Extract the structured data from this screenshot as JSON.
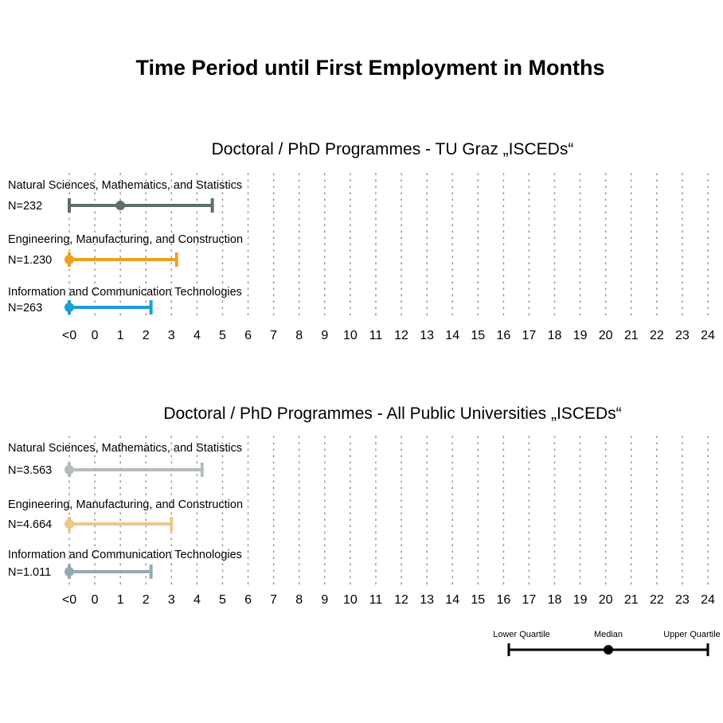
{
  "chart_data": {
    "type": "range-dot",
    "title": "Time Period until First Employment in Months",
    "x_tick_labels": [
      "<0",
      "0",
      "1",
      "2",
      "3",
      "4",
      "5",
      "6",
      "7",
      "8",
      "9",
      "10",
      "11",
      "12",
      "13",
      "14",
      "15",
      "16",
      "17",
      "18",
      "19",
      "20",
      "21",
      "22",
      "23",
      "24"
    ],
    "xlim": [
      -1,
      24
    ],
    "grid": "vertical dotted",
    "panels": [
      {
        "title": "Doctoral / PhD Programmes - TU Graz „ISCEDs“",
        "rows": [
          {
            "label": "Natural Sciences, Mathematics, and Statistics",
            "n": "N=232",
            "lower": -1,
            "median": 1,
            "upper": 4.6,
            "color": "#5f6f6b"
          },
          {
            "label": "Engineering, Manufacturing, and Construction",
            "n": "N=1.230",
            "lower": -1,
            "median": -1,
            "upper": 3.2,
            "color": "#f0a020"
          },
          {
            "label": "Information and Communication Technologies",
            "n": "N=263",
            "lower": -1,
            "median": -1,
            "upper": 2.2,
            "color": "#1a9fd6"
          }
        ]
      },
      {
        "title": "Doctoral / PhD Programmes - All Public Universities „ISCEDs“",
        "rows": [
          {
            "label": "Natural Sciences, Mathematics, and Statistics",
            "n": "N=3.563",
            "lower": -1,
            "median": -1,
            "upper": 4.2,
            "color": "#b3bcb9"
          },
          {
            "label": "Engineering, Manufacturing, and Construction",
            "n": "N=4.664",
            "lower": -1,
            "median": -1,
            "upper": 3.0,
            "color": "#efc58b"
          },
          {
            "label": "Information and Communication Technologies",
            "n": "N=1.011",
            "lower": -1,
            "median": -1,
            "upper": 2.2,
            "color": "#93a9b6"
          }
        ]
      }
    ],
    "legend": {
      "position": "bottom-right",
      "lower_label": "Lower Quartile",
      "median_label": "Median",
      "upper_label": "Upper Quartile",
      "color": "#000000"
    }
  }
}
